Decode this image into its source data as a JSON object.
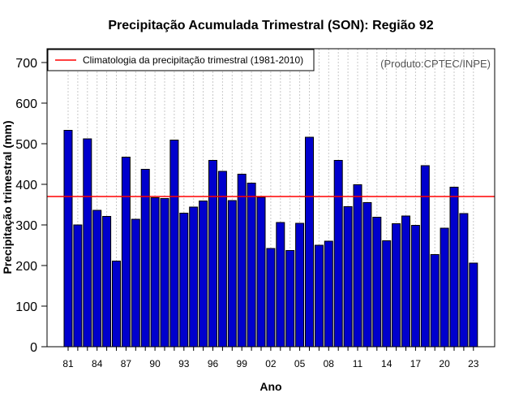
{
  "chart_data": {
    "type": "bar",
    "title": "Precipitação Acumulada Trimestral (SON): Região 92",
    "xlabel": "Ano",
    "ylabel": "Precipitação trimestral (mm)",
    "ylim": [
      0,
      700
    ],
    "yticks": [
      0,
      100,
      200,
      300,
      400,
      500,
      600,
      700
    ],
    "grid": "vertical dotted",
    "categories": [
      "1981",
      "1982",
      "1983",
      "1984",
      "1985",
      "1986",
      "1987",
      "1988",
      "1989",
      "1990",
      "1991",
      "1992",
      "1993",
      "1994",
      "1995",
      "1996",
      "1997",
      "1998",
      "1999",
      "2000",
      "2001",
      "2002",
      "2003",
      "2004",
      "2005",
      "2006",
      "2007",
      "2008",
      "2009",
      "2010",
      "2011",
      "2012",
      "2013",
      "2014",
      "2015",
      "2016",
      "2017",
      "2018",
      "2019",
      "2020",
      "2021",
      "2022",
      "2023"
    ],
    "xtick_labels": [
      "81",
      "84",
      "87",
      "90",
      "93",
      "96",
      "99",
      "02",
      "05",
      "08",
      "11",
      "14",
      "17",
      "20",
      "23"
    ],
    "xtick_every": 3,
    "series": [
      {
        "name": "Precipitação trimestral",
        "color": "#0000cd",
        "values": [
          533,
          300,
          512,
          336,
          321,
          211,
          467,
          314,
          437,
          367,
          365,
          509,
          329,
          344,
          359,
          459,
          432,
          360,
          425,
          403,
          368,
          242,
          306,
          237,
          304,
          516,
          250,
          260,
          459,
          345,
          399,
          355,
          319,
          261,
          303,
          322,
          299,
          446,
          227,
          292,
          393,
          328,
          206
        ]
      }
    ],
    "reference_line": {
      "label": "Climatologia da precipitação trimestral (1981-2010)",
      "value": 370,
      "color": "#ff0000"
    },
    "legend_position": "top-left",
    "credit": "(Produto:CPTEC/INPE)"
  }
}
